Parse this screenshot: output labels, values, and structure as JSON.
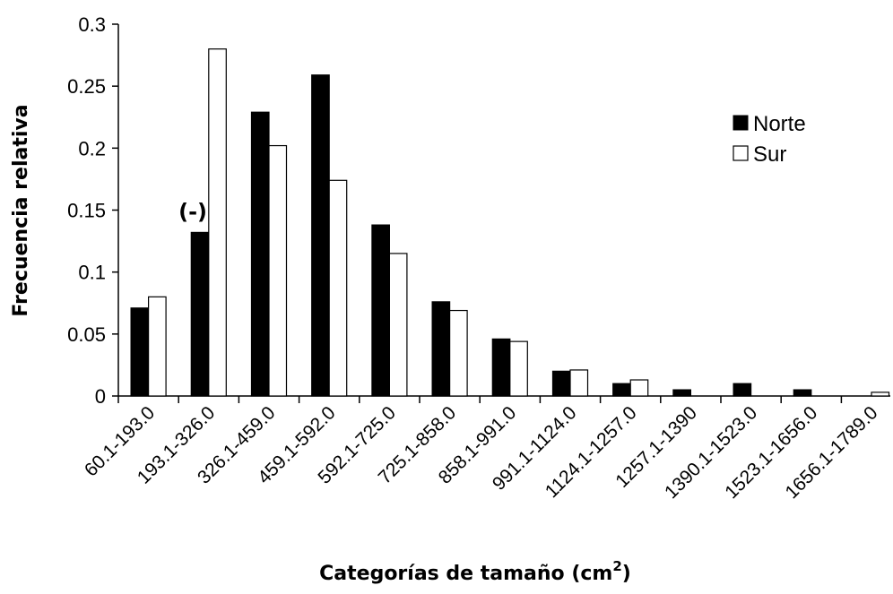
{
  "chart_data": {
    "type": "bar",
    "title": "",
    "xlabel": "Categorías de tamaño (cm",
    "xlabel_superscript": "2",
    "xlabel_close": ")",
    "ylabel": "Frecuencia relativa",
    "ylim": [
      0,
      0.3
    ],
    "yticks": [
      0,
      0.05,
      0.1,
      0.15,
      0.2,
      0.25,
      0.3
    ],
    "ytick_labels": [
      "0",
      "0.05",
      "0.1",
      "0.15",
      "0.2",
      "0.25",
      "0.3"
    ],
    "categories": [
      "60.1-193.0",
      "193.1-326.0",
      "326.1-459.0",
      "459.1-592.0",
      "592.1-725.0",
      "725.1-858.0",
      "858.1-991.0",
      "991.1-1124.0",
      "1124.1-1257.0",
      "1257.1-1390",
      "1390.1-1523.0",
      "1523.1-1656.0",
      "1656.1-1789.0"
    ],
    "series": [
      {
        "name": "Norte",
        "color": "#000000",
        "values": [
          0.071,
          0.132,
          0.229,
          0.259,
          0.138,
          0.076,
          0.046,
          0.02,
          0.01,
          0.005,
          0.01,
          0.005,
          0
        ]
      },
      {
        "name": "Sur",
        "color": "#ffffff",
        "values": [
          0.08,
          0.28,
          0.202,
          0.174,
          0.115,
          0.069,
          0.044,
          0.021,
          0.013,
          0,
          0,
          0,
          0.003
        ]
      }
    ],
    "annotations": [
      {
        "text": "(-)",
        "category_index": 1
      }
    ],
    "legend_position": "right",
    "grid": false
  }
}
